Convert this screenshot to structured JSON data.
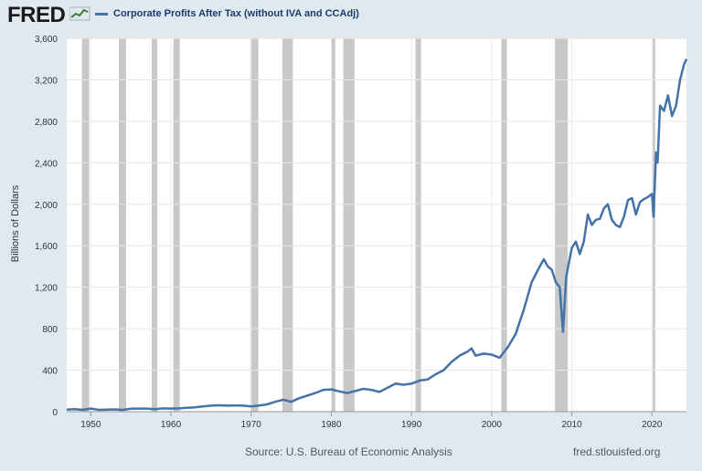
{
  "header": {
    "logo_text": "FRED",
    "legend_label": "Corporate Profits After Tax (without IVA and CCAdj)"
  },
  "footer": {
    "source": "Source: U.S. Bureau of Economic Analysis",
    "site": "fred.stlouisfed.org"
  },
  "colors": {
    "series": "#4572a7",
    "recession": "#c8c8c8",
    "plot_bg": "#ffffff",
    "page_bg": "#e1e9f0"
  },
  "chart_data": {
    "type": "line",
    "title": "",
    "xlabel": "",
    "ylabel": "Billions of Dollars",
    "xlim": [
      1947,
      2024.3
    ],
    "ylim": [
      0,
      3600
    ],
    "xticks": [
      1950,
      1960,
      1970,
      1980,
      1990,
      2000,
      2010,
      2020
    ],
    "yticks": [
      0,
      400,
      800,
      1200,
      1600,
      2000,
      2400,
      2800,
      3200,
      3600
    ],
    "ytick_labels": [
      "0",
      "400",
      "800",
      "1,200",
      "1,600",
      "2,000",
      "2,400",
      "2,800",
      "3,200",
      "3,600"
    ],
    "grid": true,
    "legend_position": "top-left",
    "recessions": [
      [
        1948.9,
        1949.8
      ],
      [
        1953.5,
        1954.4
      ],
      [
        1957.6,
        1958.3
      ],
      [
        1960.3,
        1961.1
      ],
      [
        1969.9,
        1970.9
      ],
      [
        1973.9,
        1975.2
      ],
      [
        1980.0,
        1980.5
      ],
      [
        1981.5,
        1982.9
      ],
      [
        1990.5,
        1991.2
      ],
      [
        2001.2,
        2001.9
      ],
      [
        2007.9,
        2009.5
      ],
      [
        2020.1,
        2020.4
      ]
    ],
    "series": [
      {
        "x": [
          1947,
          1948,
          1949,
          1950,
          1951,
          1952,
          1953,
          1954,
          1955,
          1956,
          1957,
          1958,
          1959,
          1960,
          1961,
          1962,
          1963,
          1964,
          1965,
          1966,
          1967,
          1968,
          1969,
          1970,
          1971,
          1972,
          1973,
          1974,
          1975,
          1976,
          1977,
          1978,
          1979,
          1980,
          1981,
          1982,
          1983,
          1984,
          1985,
          1986,
          1987,
          1988,
          1989,
          1990,
          1991,
          1992,
          1993,
          1994,
          1995,
          1996,
          1997,
          1997.5,
          1998,
          1999,
          2000,
          2001,
          2002,
          2003,
          2004,
          2005,
          2006,
          2006.5,
          2007,
          2007.5,
          2008,
          2008.5,
          2008.9,
          2009.3,
          2010,
          2010.5,
          2011,
          2011.5,
          2012,
          2012.5,
          2013,
          2013.5,
          2014,
          2014.5,
          2015,
          2015.5,
          2016,
          2016.5,
          2017,
          2017.5,
          2018,
          2018.5,
          2019,
          2019.5,
          2020,
          2020.2,
          2020.5,
          2020.7,
          2021,
          2021.5,
          2022,
          2022.5,
          2023,
          2023.5,
          2024,
          2024.3
        ],
        "y": [
          20,
          25,
          18,
          30,
          18,
          20,
          22,
          18,
          28,
          30,
          30,
          25,
          32,
          30,
          32,
          38,
          42,
          50,
          58,
          62,
          58,
          60,
          58,
          50,
          60,
          70,
          95,
          115,
          95,
          130,
          155,
          180,
          210,
          215,
          195,
          180,
          200,
          220,
          210,
          190,
          230,
          270,
          260,
          270,
          300,
          310,
          360,
          400,
          480,
          540,
          580,
          610,
          540,
          560,
          550,
          520,
          620,
          750,
          980,
          1250,
          1400,
          1470,
          1400,
          1370,
          1250,
          1200,
          770,
          1300,
          1580,
          1640,
          1520,
          1640,
          1900,
          1800,
          1850,
          1860,
          1960,
          2000,
          1850,
          1800,
          1780,
          1880,
          2040,
          2060,
          1900,
          2020,
          2050,
          2070,
          2100,
          1880,
          2500,
          2400,
          2950,
          2900,
          3050,
          2850,
          2950,
          3200,
          3350,
          3400
        ]
      }
    ]
  }
}
